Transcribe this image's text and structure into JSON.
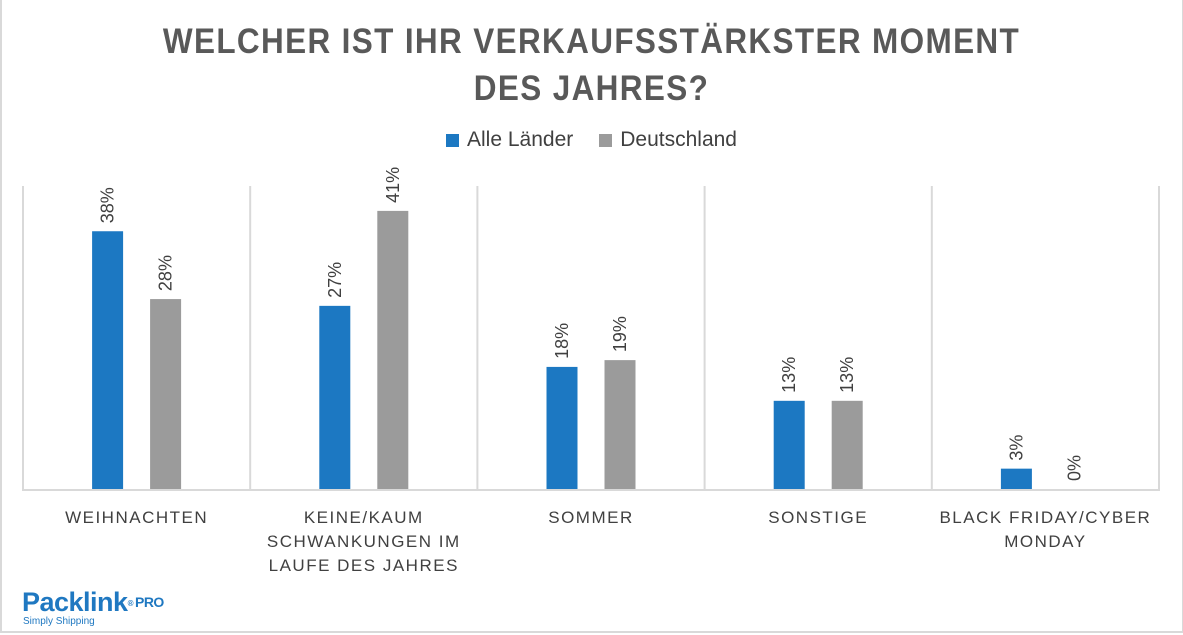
{
  "chart_data": {
    "type": "bar",
    "title": "WELCHER IST IHR VERKAUFSSTÄRKSTER MOMENT DES JAHRES?",
    "title_lines": [
      "WELCHER IST IHR VERKAUFSSTÄRKSTER MOMENT",
      "DES JAHRES?"
    ],
    "categories": [
      "WEIHNACHTEN",
      "KEINE/KAUM SCHWANKUNGEN IM LAUFE DES JAHRES",
      "SOMMER",
      "SONSTIGE",
      "BLACK FRIDAY/CYBER MONDAY"
    ],
    "category_label_lines": [
      "WEIHNACHTEN",
      "KEINE/KAUM\nSCHWANKUNGEN IM\nLAUFE DES JAHRES",
      "SOMMER",
      "SONSTIGE",
      "BLACK FRIDAY/CYBER\nMONDAY"
    ],
    "series": [
      {
        "name": "Alle Länder",
        "color": "#1c78c2",
        "values": [
          38,
          27,
          18,
          13,
          3
        ]
      },
      {
        "name": "Deutschland",
        "color": "#9b9b9b",
        "values": [
          28,
          41,
          19,
          13,
          0
        ]
      }
    ],
    "value_suffix": "%",
    "data_labels": true,
    "data_label_rotation": "vertical",
    "xlabel": "",
    "ylabel": "",
    "ylim": [
      0,
      44
    ],
    "grid": false,
    "category_separators": true,
    "legend_position": "top"
  },
  "branding": {
    "logo_name": "Packlink",
    "logo_registered": "®",
    "logo_suffix": "PRO",
    "tagline": "Simply Shipping"
  }
}
